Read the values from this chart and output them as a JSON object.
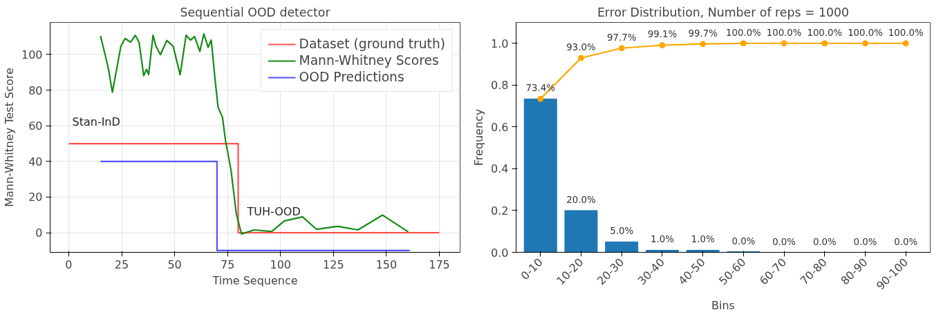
{
  "chart_data": [
    {
      "type": "line",
      "title": "Sequential OOD detector",
      "xlabel": "Time Sequence",
      "ylabel": "Mann-Whitney Test Score",
      "xlim": [
        -8.8,
        184.8
      ],
      "ylim": [
        -11,
        118
      ],
      "xticks": [
        0,
        25,
        50,
        75,
        100,
        125,
        150,
        175
      ],
      "yticks": [
        0,
        20,
        40,
        60,
        80,
        100
      ],
      "grid": true,
      "legend": "top right",
      "series": [
        {
          "name": "Dataset (ground truth)",
          "color": "#ff5050",
          "x": [
            0,
            80,
            80,
            175
          ],
          "values": [
            50,
            50,
            0,
            0
          ]
        },
        {
          "name": "Mann-Whitney Scores",
          "color": "#158a15",
          "x": [
            15,
            18.6,
            20.6,
            24.6,
            26.6,
            29.2,
            31.4,
            33.2,
            35.4,
            36.7,
            37.7,
            39.8,
            41.2,
            43.3,
            46.3,
            49.3,
            52.6,
            55.4,
            57.4,
            59.4,
            61.9,
            63.8,
            65.8,
            67.3,
            69,
            70.5,
            72.6,
            74,
            76.6,
            79.1,
            81.6,
            87.6,
            95.8,
            101.8,
            110.4,
            117,
            127,
            136.6,
            148.2,
            160.3
          ],
          "values": [
            110.4,
            92.8,
            78.8,
            104.6,
            109,
            106.9,
            110.8,
            106.9,
            88.1,
            91.7,
            88.7,
            110.8,
            104.6,
            99.9,
            107.9,
            104.6,
            88.7,
            110.8,
            108.1,
            110.1,
            101.7,
            111.6,
            104,
            108.1,
            87,
            70.5,
            64.7,
            51.8,
            35.3,
            10.7,
            -0.7,
            1.6,
            0.7,
            6.6,
            8.9,
            1.9,
            3.6,
            1.6,
            9.9,
            0.5
          ]
        },
        {
          "name": "OOD Predictions",
          "color": "#5050ff",
          "x": [
            15,
            70,
            70,
            161
          ],
          "values": [
            40,
            40,
            -10,
            -10
          ]
        }
      ],
      "annotations": [
        "Stan-InD",
        "TUH-OOD"
      ]
    },
    {
      "type": "bar",
      "title": "Error Distribution, Number of reps = 1000",
      "xlabel": "Bins",
      "ylabel": "Frequency",
      "ylim": [
        0,
        1.1
      ],
      "yticks": [
        {
          "value": 0,
          "label": "0.0"
        },
        0.2,
        0.4,
        0.6,
        0.8,
        {
          "value": 1,
          "label": "1.0"
        }
      ],
      "categories": [
        "0-10",
        "10-20",
        "20-30",
        "30-40",
        "40-50",
        "50-60",
        "60-70",
        "70-80",
        "80-90",
        "90-100"
      ],
      "series": [
        {
          "type": "bar",
          "color": "#1f77b4",
          "values": [
            0.734,
            0.2,
            0.05,
            0.01,
            0.01,
            0.003,
            0,
            0,
            0,
            0
          ],
          "value_labels": [
            null,
            "20.0%",
            "5.0%",
            "1.0%",
            "1.0%",
            "0.0%",
            "0.0%",
            "0.0%",
            "0.0%",
            "0.0%"
          ]
        },
        {
          "type": "line",
          "color": "#ffa500",
          "marker": "circle",
          "values": [
            0.734,
            0.93,
            0.977,
            0.991,
            0.997,
            1.0,
            1.0,
            1.0,
            1.0,
            1.0
          ],
          "value_labels": [
            "73.4%",
            "93.0%",
            "97.7%",
            "99.1%",
            "99.7%",
            "100.0%",
            "100.0%",
            "100.0%",
            "100.0%",
            "100.0%"
          ]
        }
      ]
    }
  ]
}
